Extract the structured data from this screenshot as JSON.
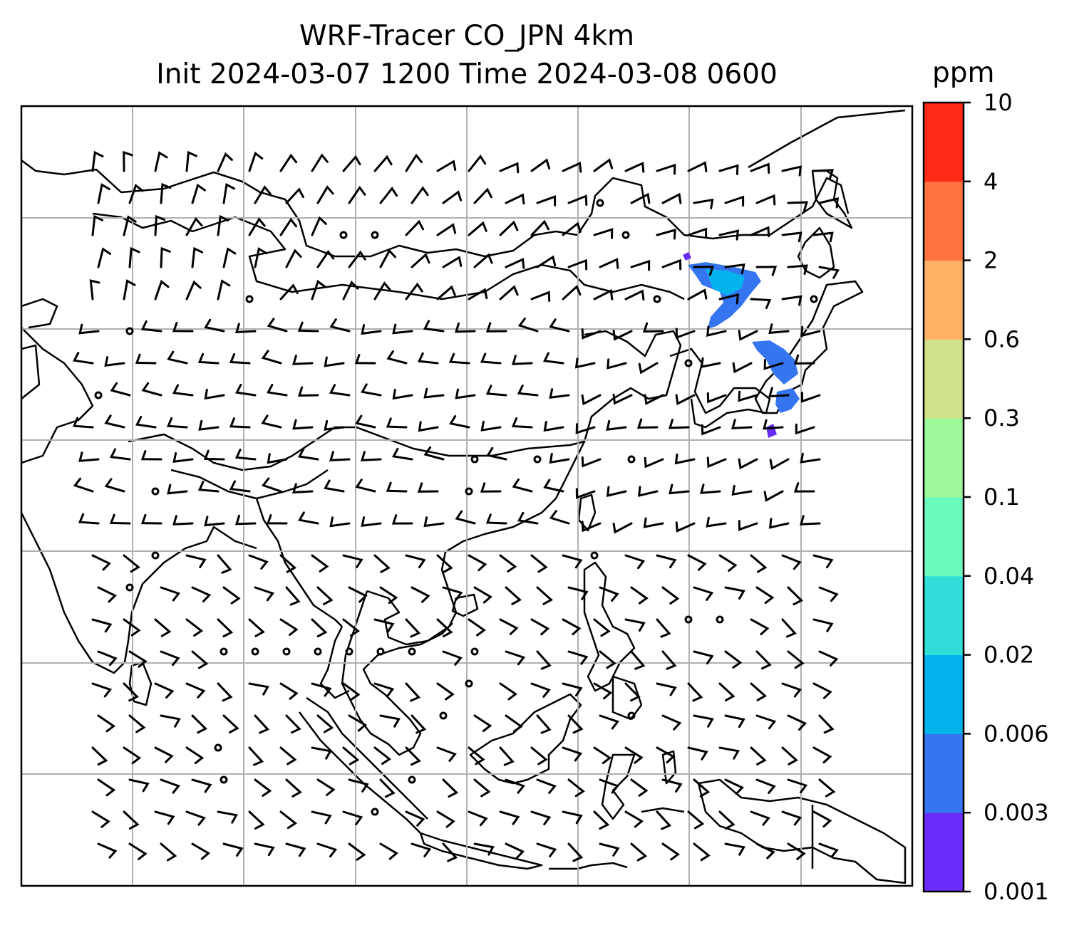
{
  "title": {
    "line1": "WRF-Tracer CO_JPN 4km",
    "line2": "Init 2024-03-07 1200 Time 2024-03-08 0600"
  },
  "colorbar": {
    "unit": "ppm",
    "levels": [
      "0.001",
      "0.003",
      "0.006",
      "0.02",
      "0.04",
      "0.1",
      "0.3",
      "0.6",
      "2",
      "4",
      "10"
    ],
    "colors": [
      "#6a2cf8",
      "#3575f0",
      "#03b4ec",
      "#31ded7",
      "#6afbbd",
      "#9dfa9b",
      "#cfe28a",
      "#feb164",
      "#ff7340",
      "#ff2b17"
    ]
  },
  "map": {
    "gridline_color": "#b0b0b0",
    "coastline_color": "#000000",
    "grid_lon": [
      5,
      4
    ],
    "wind_barbs": "black",
    "tracer_plume_colors": [
      "#3575f0",
      "#03b4ec",
      "#6a2cf8"
    ]
  }
}
